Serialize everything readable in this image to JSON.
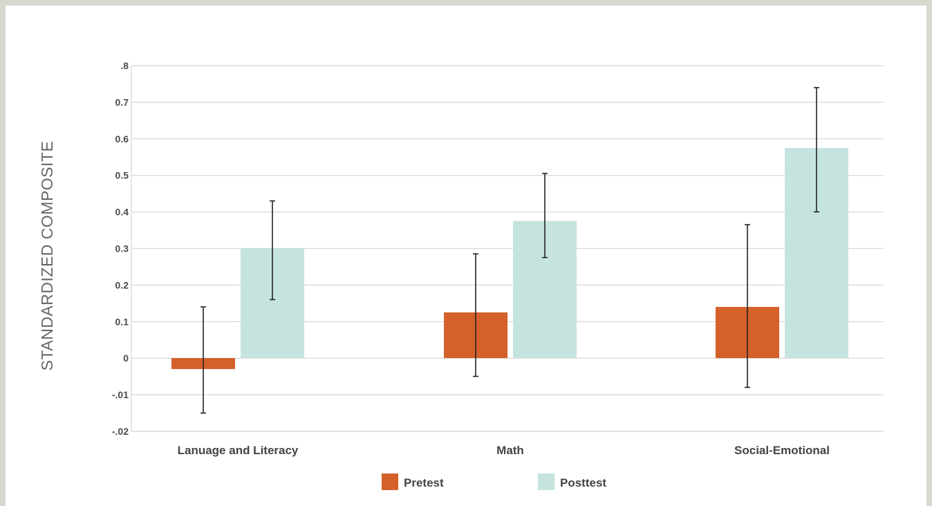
{
  "chart_data": {
    "type": "bar",
    "ylabel": "STANDARDIZED COMPOSITE",
    "categories": [
      "Lanuage and Literacy",
      "Math",
      "Social-Emotional"
    ],
    "y_tick_labels": [
      ".8",
      "0.7",
      "0.6",
      "0.5",
      "0.4",
      "0.3",
      "0.2",
      "0.1",
      "0",
      "-.01",
      "-.02"
    ],
    "ylim": [
      -0.2,
      0.8
    ],
    "grid": true,
    "legend_position": "bottom-center",
    "series": [
      {
        "name": "Pretest",
        "color": "#d4602a",
        "values": [
          -0.03,
          0.125,
          0.14
        ],
        "error_low": [
          -0.15,
          -0.05,
          -0.08
        ],
        "error_high": [
          0.14,
          0.285,
          0.365
        ]
      },
      {
        "name": "Posttest",
        "color": "#c5e4df",
        "values": [
          0.3,
          0.375,
          0.575
        ],
        "error_low": [
          0.16,
          0.275,
          0.4
        ],
        "error_high": [
          0.43,
          0.505,
          0.74
        ]
      }
    ]
  }
}
